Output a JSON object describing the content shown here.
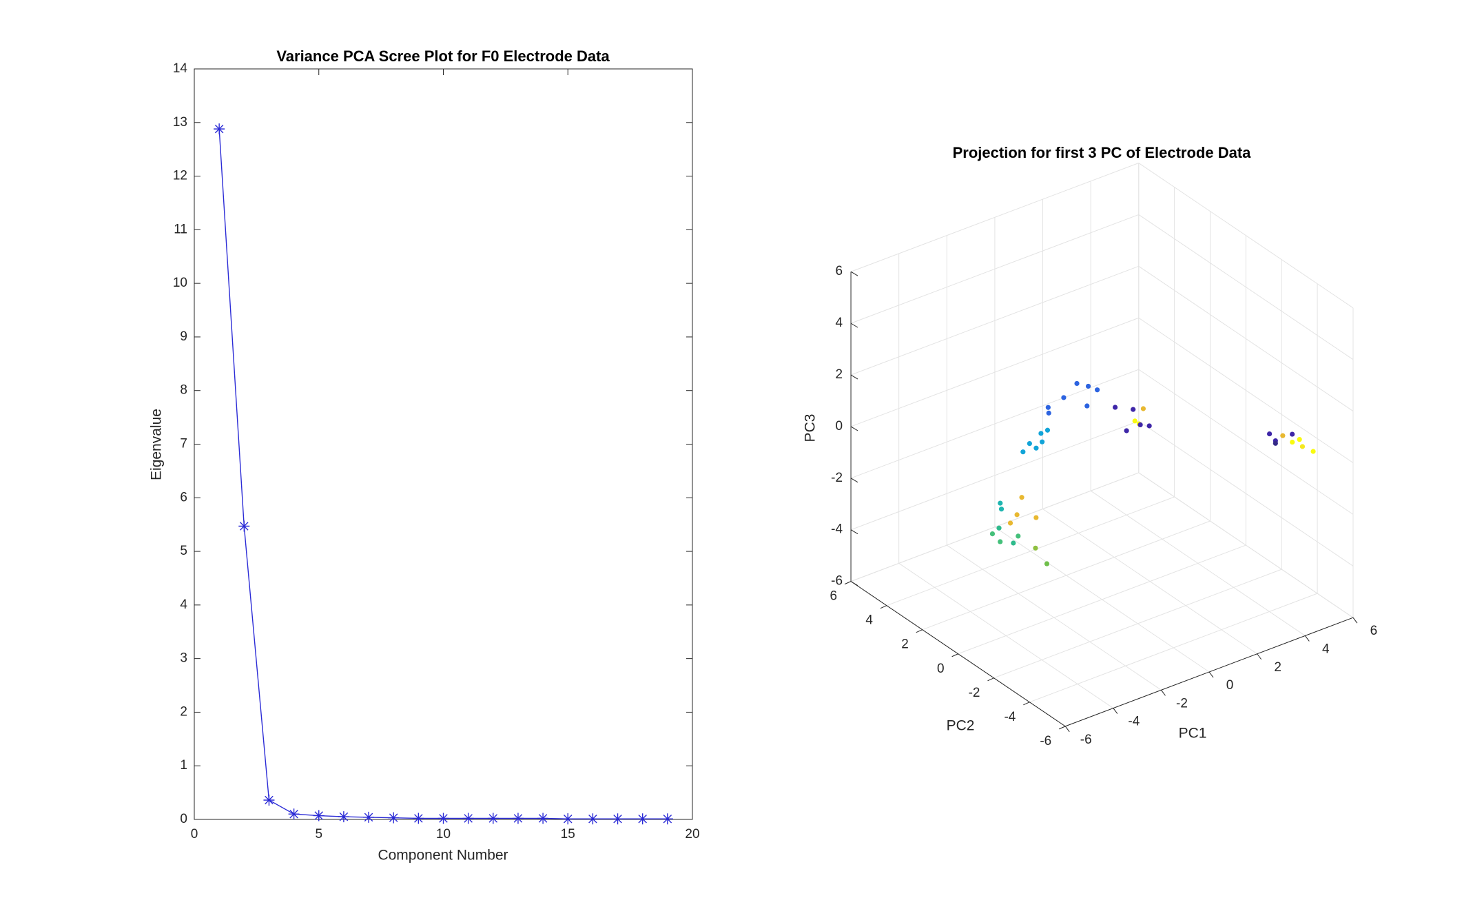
{
  "chart_data": [
    {
      "type": "line",
      "title": "Variance PCA Scree Plot for F0 Electrode Data",
      "xlabel": "Component Number",
      "ylabel": "Eigenvalue",
      "x": [
        1,
        2,
        3,
        4,
        5,
        6,
        7,
        8,
        9,
        10,
        11,
        12,
        13,
        14,
        15,
        16,
        17,
        18,
        19
      ],
      "values": [
        12.88,
        5.47,
        0.36,
        0.1,
        0.07,
        0.05,
        0.04,
        0.03,
        0.02,
        0.02,
        0.02,
        0.02,
        0.02,
        0.02,
        0.01,
        0.01,
        0.01,
        0.01,
        0.01
      ],
      "color": "#2b2bd6",
      "marker": "asterisk",
      "xlim": [
        0,
        20
      ],
      "xticks": [
        0,
        5,
        10,
        15,
        20
      ],
      "ylim": [
        0,
        14
      ],
      "yticks": [
        0,
        1,
        2,
        3,
        4,
        5,
        6,
        7,
        8,
        9,
        10,
        11,
        12,
        13,
        14
      ]
    },
    {
      "type": "scatter3d",
      "title": "Projection for first 3 PC of Electrode Data",
      "xlabel": "PC1",
      "ylabel": "PC2",
      "zlabel": "PC3",
      "xlim": [
        -6,
        6
      ],
      "ylim": [
        -6,
        6
      ],
      "zlim": [
        -6,
        6
      ],
      "xticks": [
        -6,
        -4,
        -2,
        0,
        2,
        4,
        6
      ],
      "yticks": [
        -6,
        -4,
        -2,
        0,
        2,
        4,
        6
      ],
      "zticks": [
        -6,
        -4,
        -2,
        0,
        2,
        4,
        6
      ],
      "grid": true,
      "x": [
        4.6,
        5.0,
        5.0,
        5.4,
        5.6,
        5.7,
        6.0,
        5.9,
        6.2,
        0.4,
        1.0,
        1.2,
        1.0,
        1.1,
        1.3,
        0.8,
        1.6,
        -0.6,
        -0.2,
        0.1,
        -1.0,
        -1.5,
        -1.4,
        -0.4,
        -1.8,
        -1.6,
        -2.2,
        -2.4,
        -2.0,
        -1.9,
        -3.2,
        -2.6,
        -2.8,
        -3.0,
        -3.4,
        -3.6,
        -3.5,
        -3.1,
        -2.9,
        -2.3,
        -2.4,
        -2.0,
        -3.3
      ],
      "y": [
        -3.2,
        -3.0,
        -3.0,
        -3.4,
        -2.6,
        -3.0,
        -3.0,
        -3.3,
        -3.5,
        -0.2,
        -0.4,
        -0.7,
        -0.5,
        -0.6,
        -0.4,
        -0.3,
        -0.5,
        0.6,
        0.5,
        0.4,
        0.8,
        1.0,
        1.1,
        0.3,
        1.0,
        0.9,
        1.1,
        1.2,
        1.0,
        0.8,
        1.4,
        1.0,
        1.0,
        1.1,
        1.2,
        1.3,
        1.0,
        0.8,
        0.8,
        0.6,
        0.5,
        0.4,
        1.2
      ],
      "z": [
        0.3,
        -0.2,
        -0.3,
        0.1,
        -0.4,
        -0.5,
        -0.5,
        -0.6,
        -0.8,
        1.4,
        1.2,
        1.3,
        0.8,
        0.7,
        0.5,
        0.4,
        0.4,
        2.3,
        2.1,
        1.9,
        1.8,
        1.5,
        1.2,
        1.5,
        0.6,
        0.7,
        0.3,
        0.0,
        0.1,
        0.4,
        -1.8,
        -1.6,
        -2.2,
        -2.5,
        -2.6,
        -2.8,
        -3.0,
        -3.1,
        -2.9,
        -2.3,
        -3.4,
        -4.1,
        -1.9
      ],
      "colors": [
        "#3e26a8",
        "#3e26a8",
        "#352a87",
        "#3e26a8",
        "#e8b830",
        "#f9fb0e",
        "#f9fb0e",
        "#f5e81e",
        "#f9fb0e",
        "#3e26a8",
        "#3e26a8",
        "#e8b830",
        "#f9fb0e",
        "#f9fb0e",
        "#3e26a8",
        "#3e26a8",
        "#3e26a8",
        "#2c63e0",
        "#2c63e0",
        "#2c63e0",
        "#2c63e0",
        "#2c63e0",
        "#2c63e0",
        "#2c63e0",
        "#12a4d8",
        "#12a4d8",
        "#12a4d8",
        "#12a4d8",
        "#12a4d8",
        "#12a4d8",
        "#1fb5b0",
        "#e8b830",
        "#e8b830",
        "#e8b830",
        "#2fbb8c",
        "#44c07a",
        "#44c07a",
        "#2fbb8c",
        "#44c07a",
        "#e8b830",
        "#8fc040",
        "#6fbf4a",
        "#1fb5b0"
      ]
    }
  ]
}
